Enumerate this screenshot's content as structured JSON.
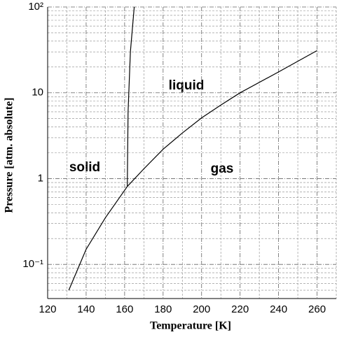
{
  "chart_data": {
    "type": "line",
    "xlabel": "Temperature [K]",
    "ylabel": "Pressure [atm. absolute]",
    "annotations": [
      "liquid",
      "solid",
      "gas"
    ],
    "xlim": [
      120,
      270
    ],
    "xticks": [
      120,
      140,
      160,
      180,
      200,
      220,
      240,
      260
    ],
    "ylim": [
      0.04,
      100
    ],
    "ylog": true,
    "yticks": [
      {
        "value": 0.1,
        "label": "10⁻¹"
      },
      1,
      10,
      {
        "value": 100,
        "label": "10²"
      }
    ],
    "grid": true,
    "series": [
      {
        "color": "#000000",
        "x": [
          131,
          140,
          150,
          161.4
        ],
        "values": [
          0.05,
          0.15,
          0.35,
          0.81
        ]
      },
      {
        "color": "#000000",
        "x": [
          161.4,
          170,
          180,
          190,
          200,
          210,
          220,
          240,
          260
        ],
        "values": [
          0.81,
          1.3,
          2.2,
          3.4,
          5.1,
          7.2,
          10,
          17.5,
          31
        ]
      },
      {
        "color": "#000000",
        "x": [
          161.4,
          161.8,
          163,
          165
        ],
        "values": [
          0.81,
          6,
          30,
          100
        ]
      }
    ]
  }
}
